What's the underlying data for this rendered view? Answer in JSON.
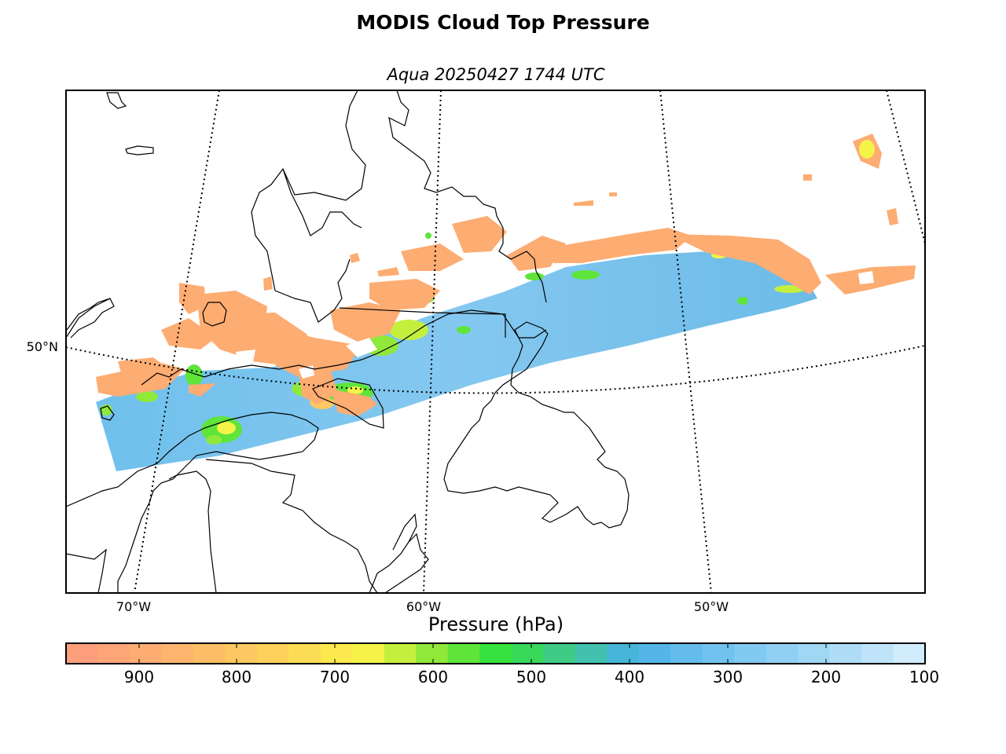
{
  "title": "MODIS Cloud Top Pressure",
  "subtitle": "Aqua 20250427 1744 UTC",
  "map": {
    "lon_labels": [
      "70°W",
      "60°W",
      "50°W"
    ],
    "lat_labels": [
      "50°N"
    ],
    "colors": {
      "frame": "#000000",
      "coast": "#000000",
      "graticule": "#000000"
    }
  },
  "colorbar": {
    "title": "Pressure (hPa)",
    "tick_labels": [
      "900",
      "800",
      "700",
      "600",
      "500",
      "400",
      "300",
      "200",
      "100"
    ],
    "colors": [
      "#fd9f7c",
      "#fda577",
      "#fdac72",
      "#fdb56d",
      "#fdbd67",
      "#fdc762",
      "#fdd15c",
      "#fddc55",
      "#fbe94e",
      "#f5f348",
      "#c5ef3d",
      "#8fe83a",
      "#5fe43a",
      "#36e23d",
      "#38d85b",
      "#3fcb85",
      "#42c1b0",
      "#47b5d8",
      "#55b5e8",
      "#63bcec",
      "#71c2ee",
      "#80c9f1",
      "#8fd0f3",
      "#9fd7f5",
      "#afddf7",
      "#bfe4fa",
      "#d0ecfd"
    ]
  }
}
